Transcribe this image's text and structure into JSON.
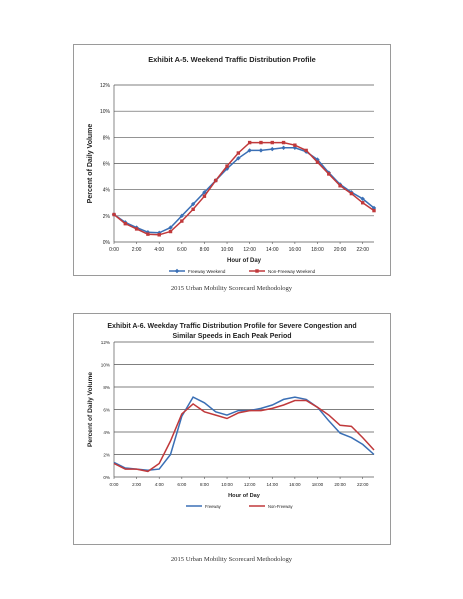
{
  "colors": {
    "freeway": "#3a6fb5",
    "non_freeway": "#c0393b",
    "grid": "#555555",
    "axis_text": "#222222"
  },
  "chart_data": [
    {
      "type": "line",
      "title": "Exhibit A-5.  Weekend Traffic Distribution Profile",
      "xlabel": "Hour of Day",
      "ylabel": "Percent of Daily Volume",
      "x": [
        0,
        1,
        2,
        3,
        4,
        5,
        6,
        7,
        8,
        9,
        10,
        11,
        12,
        13,
        14,
        15,
        16,
        17,
        18,
        19,
        20,
        21,
        22,
        23
      ],
      "x_tick_labels": [
        "0:00",
        "2:00",
        "4:00",
        "6:00",
        "8:00",
        "10:00",
        "12:00",
        "14:00",
        "16:00",
        "18:00",
        "20:00",
        "22:00"
      ],
      "y_tick_labels": [
        "0%",
        "2%",
        "4%",
        "6%",
        "8%",
        "10%",
        "12%"
      ],
      "ylim": [
        0,
        12
      ],
      "xlim": [
        0,
        23
      ],
      "grid": true,
      "legend_position": "bottom",
      "series": [
        {
          "name": "Freeway Weekend",
          "color": "#3a6fb5",
          "marker": "diamond",
          "values": [
            2.1,
            1.5,
            1.1,
            0.75,
            0.7,
            1.1,
            2.0,
            2.9,
            3.8,
            4.7,
            5.6,
            6.4,
            7.0,
            7.0,
            7.1,
            7.2,
            7.2,
            6.9,
            6.3,
            5.3,
            4.4,
            3.8,
            3.3,
            2.6
          ]
        },
        {
          "name": "Non-Freeway Weekend",
          "color": "#c0393b",
          "marker": "square",
          "values": [
            2.1,
            1.4,
            1.0,
            0.6,
            0.55,
            0.8,
            1.6,
            2.5,
            3.5,
            4.7,
            5.8,
            6.8,
            7.6,
            7.6,
            7.6,
            7.6,
            7.4,
            7.0,
            6.1,
            5.2,
            4.3,
            3.7,
            3.0,
            2.4
          ]
        }
      ]
    },
    {
      "type": "line",
      "title": "Exhibit A-6.  Weekday Traffic Distribution Profile for Severe Congestion and Similar Speeds in Each Peak Period",
      "title_lines": [
        "Exhibit A-6.  Weekday Traffic Distribution Profile for Severe Congestion and",
        "Similar Speeds in Each Peak Period"
      ],
      "xlabel": "Hour of Day",
      "ylabel": "Percent of Daily Volume",
      "x": [
        0,
        1,
        2,
        3,
        4,
        5,
        6,
        7,
        8,
        9,
        10,
        11,
        12,
        13,
        14,
        15,
        16,
        17,
        18,
        19,
        20,
        21,
        22,
        23
      ],
      "x_tick_labels": [
        "0:00",
        "2:00",
        "4:00",
        "6:00",
        "8:00",
        "10:00",
        "12:00",
        "14:00",
        "16:00",
        "18:00",
        "20:00",
        "22:00"
      ],
      "y_tick_labels": [
        "0%",
        "2%",
        "4%",
        "6%",
        "8%",
        "10%",
        "12%"
      ],
      "ylim": [
        0,
        12
      ],
      "xlim": [
        0,
        23
      ],
      "grid": true,
      "legend_position": "bottom",
      "series": [
        {
          "name": "Freeway",
          "color": "#3a6fb5",
          "marker": "none",
          "values": [
            1.3,
            0.8,
            0.7,
            0.6,
            0.7,
            2.0,
            5.4,
            7.1,
            6.6,
            5.8,
            5.5,
            5.9,
            5.9,
            6.1,
            6.4,
            6.9,
            7.1,
            6.9,
            6.2,
            5.0,
            3.9,
            3.5,
            2.9,
            2.0
          ]
        },
        {
          "name": "Non-Freeway",
          "color": "#c0393b",
          "marker": "none",
          "values": [
            1.2,
            0.7,
            0.7,
            0.5,
            1.2,
            3.2,
            5.6,
            6.5,
            5.8,
            5.5,
            5.2,
            5.7,
            5.9,
            5.9,
            6.1,
            6.4,
            6.8,
            6.8,
            6.2,
            5.5,
            4.6,
            4.5,
            3.5,
            2.4
          ]
        }
      ]
    }
  ],
  "captions": [
    "2015 Urban Mobility Scorecard Methodology",
    "2015 Urban Mobility Scorecard Methodology"
  ]
}
